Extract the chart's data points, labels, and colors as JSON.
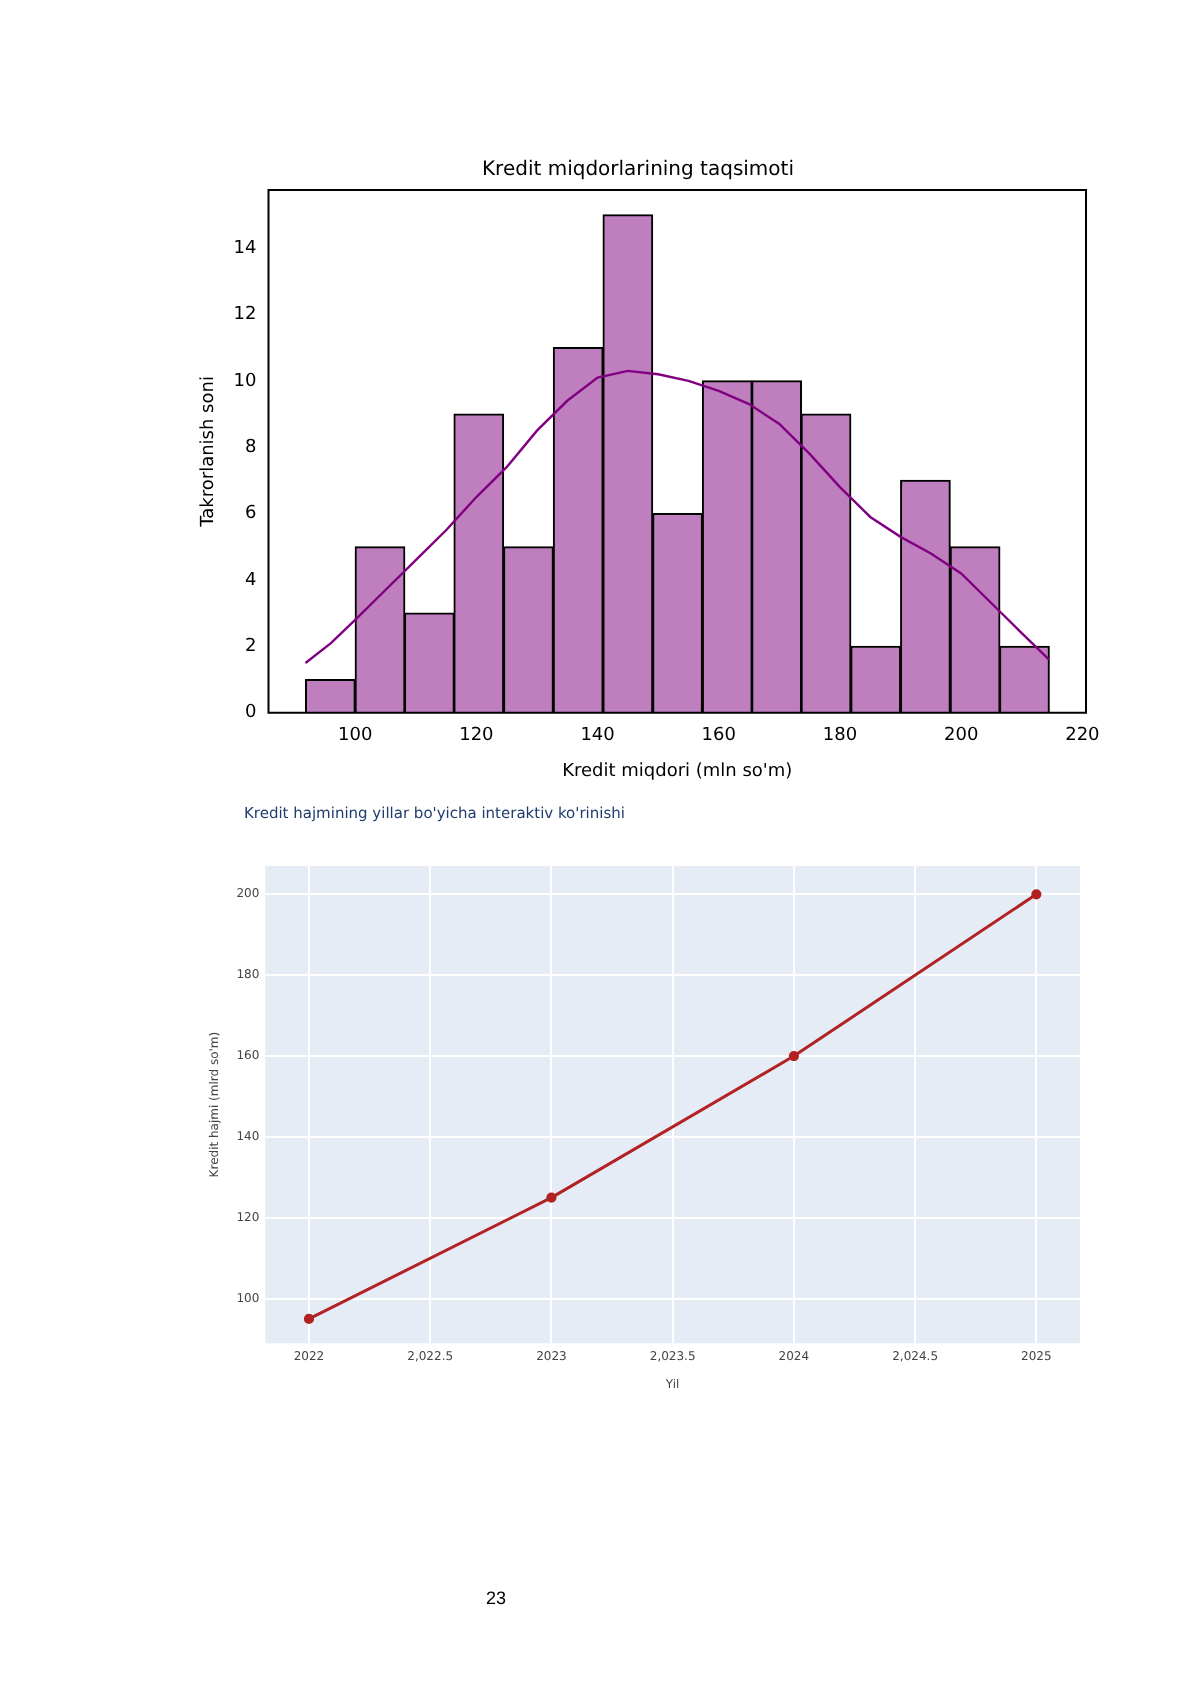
{
  "chart_data": [
    {
      "type": "histogram",
      "title": "Kredit miqdorlarining taqsimoti",
      "xlabel": "Kredit miqdori (mln so'm)",
      "ylabel": "Takrorlanish soni",
      "bins": [
        91.8,
        100.0,
        108.2,
        116.3,
        124.5,
        132.7,
        140.9,
        149.1,
        157.3,
        165.5,
        173.6,
        181.8,
        190.0,
        198.2,
        206.4,
        214.5
      ],
      "values": [
        1,
        5,
        3,
        9,
        5,
        11,
        15,
        6,
        10,
        10,
        9,
        2,
        7,
        5,
        2
      ],
      "color": "#bf7fbf",
      "series": [
        {
          "type": "line",
          "color": "#800080",
          "x": [
            91.8,
            96,
            100,
            105,
            110,
            115,
            120,
            125,
            130,
            135,
            140,
            145,
            150,
            155,
            160,
            165,
            170,
            175,
            180,
            185,
            190,
            195,
            200,
            205,
            210,
            214.5
          ],
          "values": [
            1.5,
            2.1,
            2.8,
            3.7,
            4.6,
            5.5,
            6.5,
            7.4,
            8.5,
            9.4,
            10.1,
            10.3,
            10.2,
            10.0,
            9.7,
            9.3,
            8.7,
            7.8,
            6.8,
            5.9,
            5.3,
            4.8,
            4.2,
            3.3,
            2.4,
            1.6
          ]
        }
      ],
      "xlim": [
        85.7,
        220.6
      ],
      "ylim": [
        0,
        15.75
      ],
      "xticks": [
        100,
        120,
        140,
        160,
        180,
        200,
        220
      ],
      "yticks": [
        0,
        2,
        4,
        6,
        8,
        10,
        12,
        14
      ]
    },
    {
      "type": "line",
      "title": "Kredit hajmining yillar bo'yicha interaktiv ko'rinishi",
      "xlabel": "Yil",
      "ylabel": "Kredit hajmi (mlrd so'm)",
      "x": [
        2022,
        2023,
        2024,
        2025
      ],
      "series": [
        {
          "color": "#b22222",
          "values": [
            95,
            125,
            160,
            200
          ]
        }
      ],
      "xlim": [
        2021.82,
        2025.18
      ],
      "ylim": [
        89,
        207
      ],
      "xticks": [
        2022,
        {
          "value": 2022.5,
          "label": "2,022.5"
        },
        2023,
        {
          "value": 2023.5,
          "label": "2,023.5"
        },
        2024,
        {
          "value": 2024.5,
          "label": "2,024.5"
        },
        2025
      ],
      "yticks": [
        100,
        120,
        140,
        160,
        180,
        200
      ],
      "grid": true,
      "marker": "circle",
      "annotations": [
        "23"
      ]
    }
  ]
}
